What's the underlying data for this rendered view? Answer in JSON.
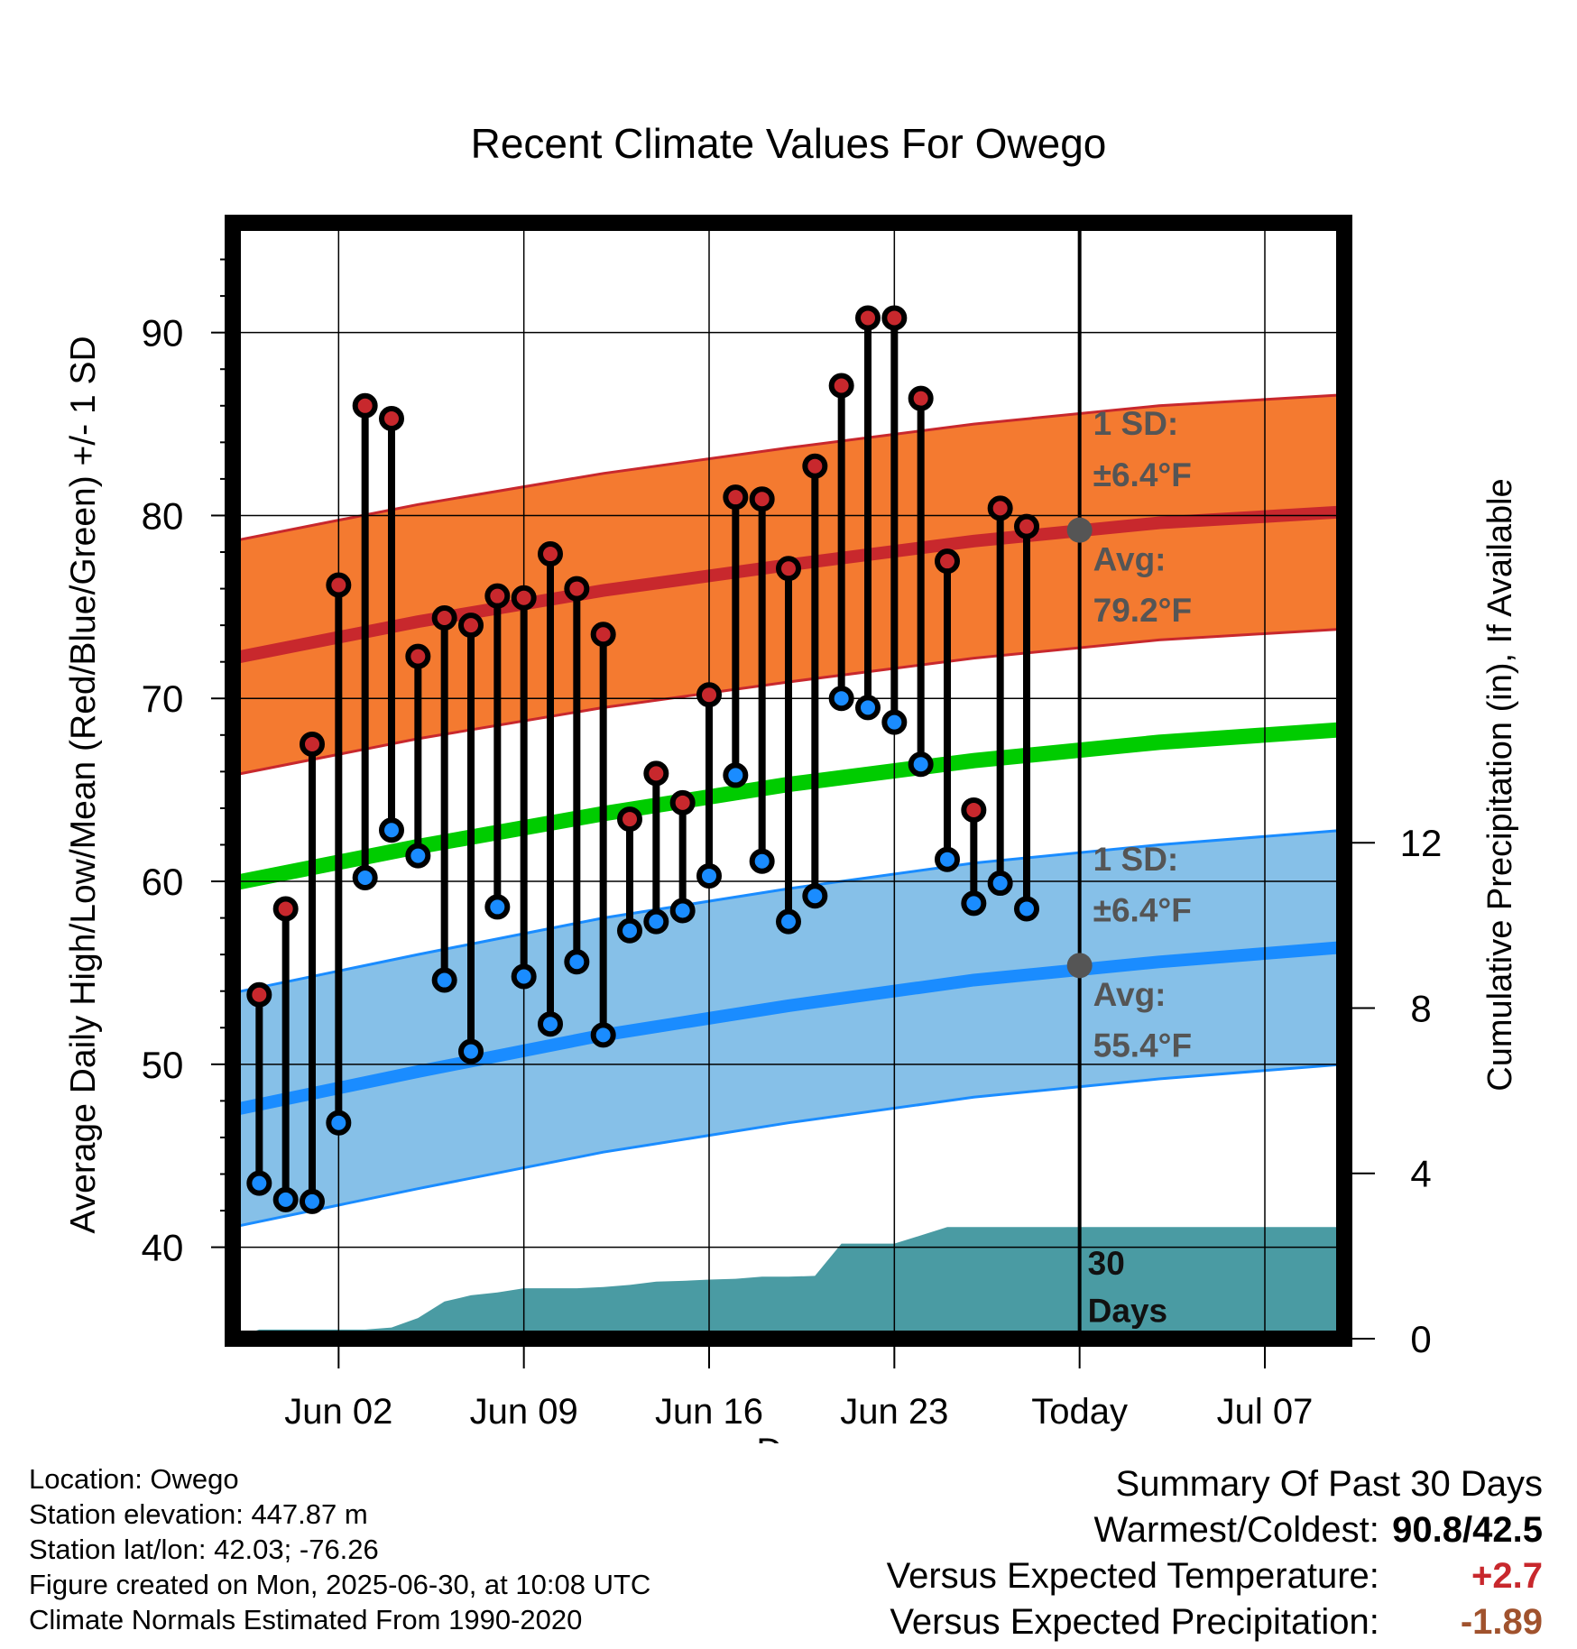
{
  "chart_data": {
    "type": "line",
    "title": "Recent Climate Values For Owego",
    "xlabel": "Day",
    "ylabel": "Average Daily High/Low/Mean (Red/Blue/Green) +/- 1 SD",
    "y2label": "Cumulative Precipitation (in), If Available",
    "ylim": [
      35,
      96
    ],
    "y2lim": [
      0,
      27
    ],
    "xlim": [
      "2025-05-29",
      "2025-07-10"
    ],
    "x_ticks": [
      {
        "date": "2025-06-02",
        "label": "Jun 02"
      },
      {
        "date": "2025-06-09",
        "label": "Jun 09"
      },
      {
        "date": "2025-06-16",
        "label": "Jun 16"
      },
      {
        "date": "2025-06-23",
        "label": "Jun 23"
      },
      {
        "date": "2025-06-30",
        "label": "Today"
      },
      {
        "date": "2025-07-07",
        "label": "Jul 07"
      }
    ],
    "y_ticks": [
      40,
      50,
      60,
      70,
      80,
      90
    ],
    "y2_ticks": [
      0,
      4,
      8,
      12
    ],
    "grid": true,
    "today": "2025-06-30",
    "today_label": "30\nDays",
    "colors": {
      "high": "#c8282d",
      "high_band": "#f47a30",
      "low": "#1a8cff",
      "low_band": "#86c0e8",
      "mean": "#00cc00",
      "precip": "#4a9ba3",
      "dot_outline": "#000000",
      "avg_marker": "#555555"
    },
    "series": [
      {
        "name": "Daily High",
        "x": [
          "2025-05-30",
          "2025-05-31",
          "2025-06-01",
          "2025-06-02",
          "2025-06-03",
          "2025-06-04",
          "2025-06-05",
          "2025-06-06",
          "2025-06-07",
          "2025-06-08",
          "2025-06-09",
          "2025-06-10",
          "2025-06-11",
          "2025-06-12",
          "2025-06-13",
          "2025-06-14",
          "2025-06-15",
          "2025-06-16",
          "2025-06-17",
          "2025-06-18",
          "2025-06-19",
          "2025-06-20",
          "2025-06-21",
          "2025-06-22",
          "2025-06-23",
          "2025-06-24",
          "2025-06-25",
          "2025-06-26",
          "2025-06-27",
          "2025-06-28",
          "2025-06-29"
        ],
        "values": [
          53.8,
          58.5,
          67.5,
          76.2,
          86.0,
          85.3,
          72.3,
          74.4,
          74.0,
          75.6,
          75.5,
          77.9,
          76.0,
          73.5,
          63.4,
          65.9,
          64.3,
          70.2,
          81.0,
          80.9,
          77.1,
          82.7,
          87.1,
          90.8,
          90.8,
          86.4,
          77.5,
          63.9,
          80.4,
          79.4,
          null
        ]
      },
      {
        "name": "Daily Low",
        "x": [
          "2025-05-30",
          "2025-05-31",
          "2025-06-01",
          "2025-06-02",
          "2025-06-03",
          "2025-06-04",
          "2025-06-05",
          "2025-06-06",
          "2025-06-07",
          "2025-06-08",
          "2025-06-09",
          "2025-06-10",
          "2025-06-11",
          "2025-06-12",
          "2025-06-13",
          "2025-06-14",
          "2025-06-15",
          "2025-06-16",
          "2025-06-17",
          "2025-06-18",
          "2025-06-19",
          "2025-06-20",
          "2025-06-21",
          "2025-06-22",
          "2025-06-23",
          "2025-06-24",
          "2025-06-25",
          "2025-06-26",
          "2025-06-27",
          "2025-06-28",
          "2025-06-29"
        ],
        "values": [
          43.5,
          42.6,
          42.5,
          46.8,
          60.2,
          62.8,
          61.4,
          54.6,
          50.7,
          58.6,
          54.8,
          52.2,
          55.6,
          51.6,
          57.3,
          57.8,
          58.4,
          60.3,
          65.8,
          61.1,
          57.8,
          59.2,
          70.0,
          69.5,
          68.7,
          66.4,
          61.2,
          58.8,
          59.9,
          58.5,
          null
        ]
      },
      {
        "name": "Normal High",
        "x": [
          "2025-05-29",
          "2025-06-05",
          "2025-06-12",
          "2025-06-19",
          "2025-06-26",
          "2025-07-03",
          "2025-07-10"
        ],
        "values": [
          72.2,
          74.2,
          75.9,
          77.3,
          78.6,
          79.6,
          80.2
        ],
        "sd": 6.4
      },
      {
        "name": "Normal Low",
        "x": [
          "2025-05-29",
          "2025-06-05",
          "2025-06-12",
          "2025-06-19",
          "2025-06-26",
          "2025-07-03",
          "2025-07-10"
        ],
        "values": [
          47.5,
          49.6,
          51.6,
          53.2,
          54.6,
          55.6,
          56.4
        ],
        "sd": 6.4
      },
      {
        "name": "Normal Mean",
        "x": [
          "2025-05-29",
          "2025-06-05",
          "2025-06-12",
          "2025-06-19",
          "2025-06-26",
          "2025-07-03",
          "2025-07-10"
        ],
        "values": [
          59.9,
          61.9,
          63.7,
          65.3,
          66.6,
          67.6,
          68.3
        ]
      },
      {
        "name": "Cumulative Precipitation",
        "axis": "y2",
        "x": [
          "2025-05-29",
          "2025-05-30",
          "2025-06-03",
          "2025-06-04",
          "2025-06-05",
          "2025-06-06",
          "2025-06-07",
          "2025-06-08",
          "2025-06-09",
          "2025-06-10",
          "2025-06-11",
          "2025-06-12",
          "2025-06-13",
          "2025-06-14",
          "2025-06-15",
          "2025-06-16",
          "2025-06-17",
          "2025-06-18",
          "2025-06-19",
          "2025-06-20",
          "2025-06-21",
          "2025-06-22",
          "2025-06-23",
          "2025-06-24",
          "2025-06-25",
          "2025-06-26",
          "2025-07-10"
        ],
        "values": [
          0.0,
          0.22,
          0.22,
          0.27,
          0.5,
          0.9,
          1.05,
          1.12,
          1.22,
          1.22,
          1.22,
          1.25,
          1.3,
          1.38,
          1.4,
          1.43,
          1.45,
          1.5,
          1.5,
          1.52,
          2.3,
          2.3,
          2.3,
          2.5,
          2.7,
          2.7,
          2.7
        ]
      }
    ],
    "annotations": {
      "high_sd_label": "1 SD:",
      "high_sd_value": "±6.4°F",
      "high_avg_label": "Avg:",
      "high_avg_value": "79.2°F",
      "low_sd_label": "1 SD:",
      "low_sd_value": "±6.4°F",
      "low_avg_label": "Avg:",
      "low_avg_value": "55.4°F"
    }
  },
  "info": {
    "location": "Location: Owego",
    "elevation": "Station elevation: 447.87 m",
    "latlon": "Station lat/lon: 42.03; -76.26",
    "created": "Figure created on Mon, 2025-06-30, at 10:08 UTC",
    "normals": "Climate Normals Estimated From 1990-2020"
  },
  "summary": {
    "heading": "Summary Of Past 30 Days",
    "warm_label": "Warmest/Coldest:",
    "warm_value": "90.8/42.5",
    "temp_label": "Versus Expected Temperature:",
    "temp_value": "+2.7",
    "precip_label": "Versus Expected Precipitation:",
    "precip_value": "-1.89"
  }
}
